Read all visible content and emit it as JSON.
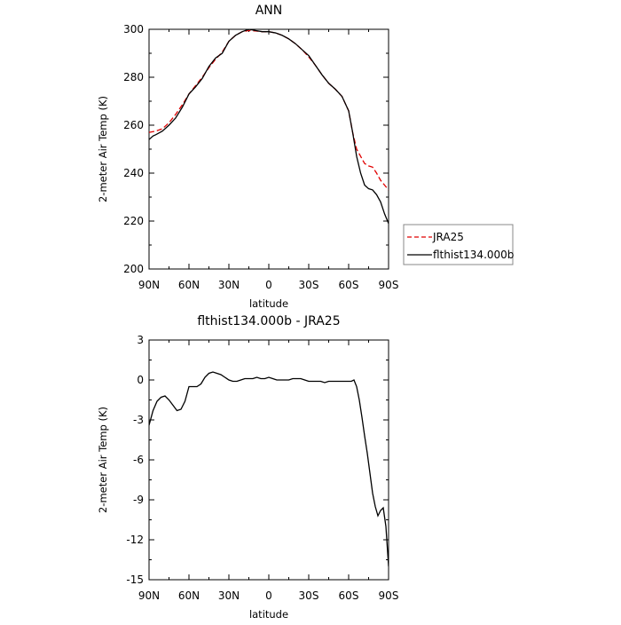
{
  "chart_data": [
    {
      "type": "line",
      "title": "ANN",
      "xlabel": "latitude",
      "ylabel": "2-meter Air Temp (K)",
      "xlim": [
        90,
        -90
      ],
      "ylim": [
        200,
        300
      ],
      "x_ticks": [
        90,
        60,
        30,
        0,
        -30,
        -60,
        -90
      ],
      "x_tick_labels": [
        "90N",
        "60N",
        "30N",
        "0",
        "30S",
        "60S",
        "90S"
      ],
      "y_ticks": [
        200,
        220,
        240,
        260,
        280,
        300
      ],
      "y_tick_labels": [
        "200",
        "220",
        "240",
        "260",
        "280",
        "300"
      ],
      "grid": false,
      "legend_position": "right",
      "series": [
        {
          "name": "JRA25",
          "color": "#e00000",
          "style": "dashed",
          "x": [
            90,
            85,
            80,
            75,
            70,
            65,
            60,
            55,
            50,
            45,
            40,
            35,
            30,
            25,
            20,
            15,
            10,
            5,
            0,
            -5,
            -10,
            -15,
            -20,
            -25,
            -30,
            -35,
            -40,
            -45,
            -50,
            -55,
            -60,
            -63,
            -66,
            -69,
            -72,
            -75,
            -78,
            -81,
            -84,
            -87,
            -90
          ],
          "y": [
            257,
            257.5,
            258.5,
            261,
            264.5,
            268.5,
            273,
            276.5,
            280,
            284,
            287.5,
            290.5,
            295,
            297.5,
            299,
            299.5,
            299.3,
            299,
            299,
            298.5,
            297.5,
            296,
            294,
            291.5,
            288.5,
            285,
            281,
            277.5,
            275,
            272,
            266,
            257,
            250,
            247,
            244,
            243,
            242.5,
            240,
            237,
            235,
            233
          ]
        },
        {
          "name": "flthist134.000b",
          "color": "#000000",
          "style": "solid",
          "x": [
            90,
            87,
            85,
            80,
            75,
            70,
            65,
            60,
            55,
            50,
            45,
            40,
            35,
            30,
            25,
            20,
            15,
            10,
            5,
            0,
            -5,
            -10,
            -15,
            -20,
            -25,
            -30,
            -35,
            -40,
            -45,
            -50,
            -55,
            -60,
            -63,
            -66,
            -69,
            -72,
            -75,
            -78,
            -81,
            -84,
            -87,
            -90
          ],
          "y": [
            254,
            255.5,
            256,
            257.5,
            260,
            263,
            267.5,
            273,
            276,
            279.5,
            284.5,
            288,
            290,
            295,
            297.5,
            299,
            300,
            299.5,
            299,
            299,
            298.5,
            297.5,
            296,
            294,
            291.5,
            289,
            285,
            281,
            277.5,
            275,
            272,
            266,
            257,
            247,
            240,
            235,
            233.5,
            233,
            231,
            228,
            223,
            219
          ]
        }
      ]
    },
    {
      "type": "line",
      "title": "flthist134.000b - JRA25",
      "xlabel": "latitude",
      "ylabel": "2-meter Air Temp (K)",
      "xlim": [
        90,
        -90
      ],
      "ylim": [
        -15,
        3
      ],
      "x_ticks": [
        90,
        60,
        30,
        0,
        -30,
        -60,
        -90
      ],
      "x_tick_labels": [
        "90N",
        "60N",
        "30N",
        "0",
        "30S",
        "60S",
        "90S"
      ],
      "y_ticks": [
        -15,
        -12,
        -9,
        -6,
        -3,
        0,
        3
      ],
      "y_tick_labels": [
        "-15",
        "-12",
        "-9",
        "-6",
        "-3",
        "0",
        "3"
      ],
      "grid": false,
      "series": [
        {
          "color": "#000000",
          "style": "solid",
          "x": [
            90,
            87,
            84,
            81,
            78,
            75,
            72,
            69,
            66,
            63,
            60,
            57,
            54,
            51,
            48,
            45,
            42,
            39,
            36,
            33,
            30,
            27,
            24,
            21,
            18,
            15,
            12,
            9,
            6,
            3,
            0,
            -3,
            -6,
            -9,
            -12,
            -15,
            -18,
            -21,
            -24,
            -27,
            -30,
            -33,
            -36,
            -39,
            -42,
            -45,
            -48,
            -51,
            -54,
            -57,
            -60,
            -62,
            -64,
            -66,
            -68,
            -70,
            -72,
            -74,
            -76,
            -78,
            -80,
            -82,
            -84,
            -86,
            -88,
            -90
          ],
          "y": [
            -3.4,
            -2.3,
            -1.6,
            -1.3,
            -1.2,
            -1.5,
            -1.9,
            -2.3,
            -2.2,
            -1.6,
            -0.5,
            -0.5,
            -0.5,
            -0.3,
            0.2,
            0.5,
            0.6,
            0.5,
            0.4,
            0.2,
            0,
            -0.1,
            -0.1,
            0,
            0.1,
            0.1,
            0.1,
            0.2,
            0.1,
            0.1,
            0.2,
            0.1,
            0,
            0,
            0,
            0,
            0.1,
            0.1,
            0.1,
            0,
            -0.1,
            -0.1,
            -0.1,
            -0.1,
            -0.2,
            -0.1,
            -0.1,
            -0.1,
            -0.1,
            -0.1,
            -0.1,
            -0.1,
            0,
            -0.5,
            -1.5,
            -2.8,
            -4.2,
            -5.5,
            -7,
            -8.5,
            -9.5,
            -10.2,
            -9.8,
            -9.6,
            -11,
            -14
          ]
        }
      ]
    }
  ]
}
